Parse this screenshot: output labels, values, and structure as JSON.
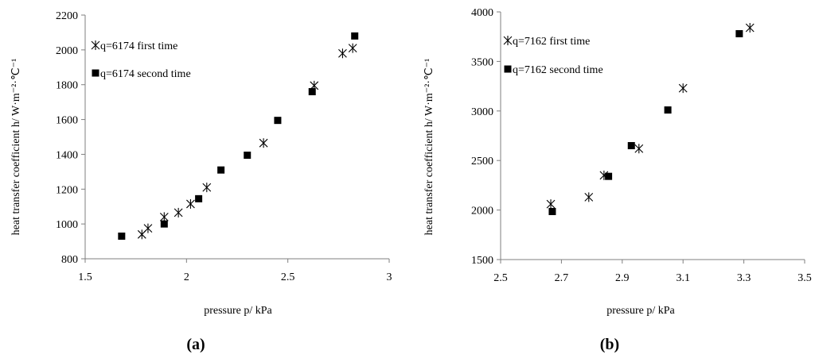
{
  "chart_data": [
    {
      "type": "scatter",
      "panel_label": "(a)",
      "xlabel": "pressure p/ kPa",
      "ylabel": "heat transfer coefficient h/ W·m⁻²·℃⁻¹",
      "xlim": [
        1.5,
        3
      ],
      "ylim": [
        800,
        2200
      ],
      "xticks": [
        "1.5",
        "2",
        "2.5",
        "3"
      ],
      "yticks": [
        "800",
        "1000",
        "1200",
        "1400",
        "1600",
        "1800",
        "2000",
        "2200"
      ],
      "grid": false,
      "legend_position": "top-left",
      "series": [
        {
          "name": "q=6174 first time",
          "marker": "star",
          "x": [
            1.78,
            1.81,
            1.89,
            1.96,
            2.02,
            2.1,
            2.38,
            2.63,
            2.77,
            2.82
          ],
          "y": [
            940,
            975,
            1040,
            1065,
            1115,
            1210,
            1465,
            1795,
            1980,
            2010
          ]
        },
        {
          "name": "q=6174 second time",
          "marker": "square",
          "x": [
            1.68,
            1.89,
            2.06,
            2.17,
            2.3,
            2.45,
            2.62,
            2.83
          ],
          "y": [
            930,
            1000,
            1145,
            1310,
            1395,
            1595,
            1760,
            2080
          ]
        }
      ]
    },
    {
      "type": "scatter",
      "panel_label": "(b)",
      "xlabel": "pressure p/ kPa",
      "ylabel": "heat transfer coefficient h/ W·m⁻²·℃⁻¹",
      "xlim": [
        2.5,
        3.5
      ],
      "ylim": [
        1500,
        4000
      ],
      "xticks": [
        "2.5",
        "2.7",
        "2.9",
        "3.1",
        "3.3",
        "3.5"
      ],
      "yticks": [
        "1500",
        "2000",
        "2500",
        "3000",
        "3500",
        "4000"
      ],
      "grid": false,
      "legend_position": "top-left",
      "series": [
        {
          "name": "q=7162 first time",
          "marker": "star",
          "x": [
            2.665,
            2.79,
            2.84,
            2.955,
            3.1,
            3.32
          ],
          "y": [
            2060,
            2130,
            2350,
            2620,
            3230,
            3840
          ]
        },
        {
          "name": "q=7162 second time",
          "marker": "square",
          "x": [
            2.67,
            2.855,
            2.93,
            3.05,
            3.285
          ],
          "y": [
            1985,
            2340,
            2650,
            3010,
            3780
          ]
        }
      ]
    }
  ]
}
